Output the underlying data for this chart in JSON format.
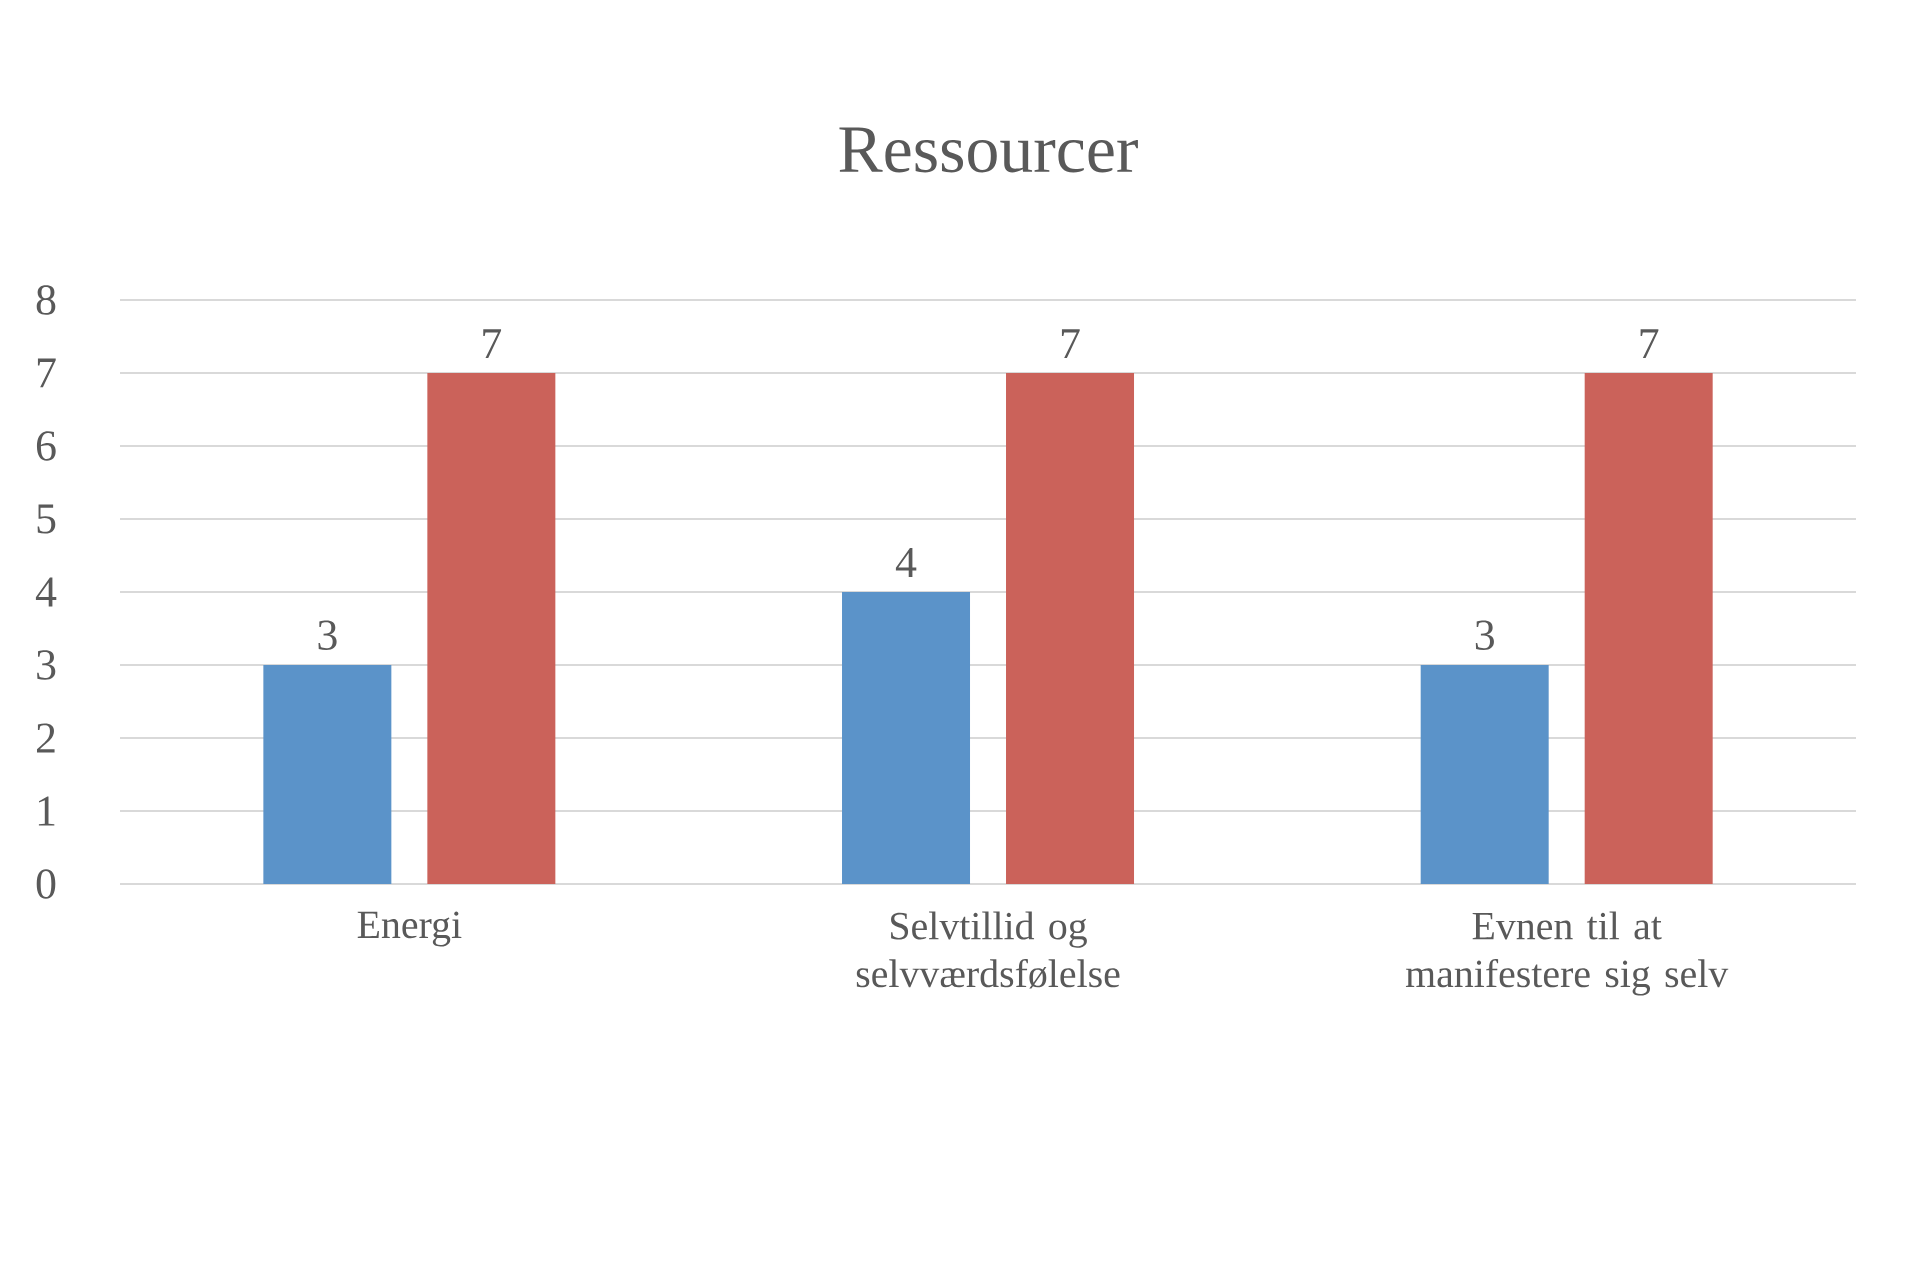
{
  "chart_data": {
    "type": "bar",
    "title": "Ressourcer",
    "categories": [
      "Energi",
      "Selvtillid og selvværdsfølelse",
      "Evnen til at manifestere sig selv"
    ],
    "series": [
      {
        "color": "#5b93c9",
        "values": [
          3,
          4,
          3
        ]
      },
      {
        "color": "#cb625a",
        "values": [
          7,
          7,
          7
        ]
      }
    ],
    "ylim": [
      0,
      8
    ],
    "yticks": [
      0,
      1,
      2,
      3,
      4,
      5,
      6,
      7,
      8
    ],
    "grid": "y",
    "data_labels": true
  }
}
